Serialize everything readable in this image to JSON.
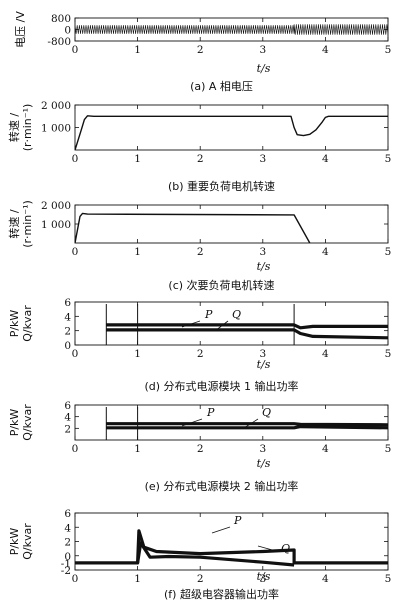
{
  "chart_data": [
    {
      "type": "line",
      "title": "(a) A 相电压",
      "xlabel": "t/s",
      "ylabel": "电压 /V",
      "xlim": [
        0,
        5
      ],
      "ylim": [
        -800,
        800
      ],
      "xticks": [
        "0",
        "1",
        "2",
        "3",
        "4",
        "5"
      ],
      "yticks": [
        "-800",
        "0",
        "800"
      ],
      "series": [
        {
          "x": [
            0,
            3.5,
            3.5,
            5
          ],
          "y_envelope_max": [
            300,
            300,
            360,
            360
          ],
          "y_envelope_min": [
            -300,
            -300,
            -360,
            -360
          ]
        }
      ]
    },
    {
      "type": "line",
      "title": "(b) 重要负荷电机转速",
      "xlabel": "",
      "ylabel": "转速 / (r·min⁻¹)",
      "ylabel_lines": [
        "转速 /",
        "(r·min⁻¹)"
      ],
      "xlim": [
        0,
        5
      ],
      "ylim": [
        0,
        2000
      ],
      "xticks": [
        "0",
        "1",
        "2",
        "3",
        "4",
        "5"
      ],
      "yticks": [
        "1 000",
        "2 000"
      ],
      "series": [
        {
          "x": [
            0,
            0.1,
            0.15,
            0.2,
            0.3,
            3.45,
            3.5,
            3.55,
            3.65,
            3.75,
            3.85,
            3.95,
            4.0,
            4.05,
            5
          ],
          "y": [
            0,
            900,
            1350,
            1520,
            1500,
            1500,
            1000,
            680,
            640,
            700,
            900,
            1250,
            1450,
            1500,
            1500
          ]
        }
      ]
    },
    {
      "type": "line",
      "title": "(c) 次要负荷电机转速",
      "xlabel": "t/s",
      "ylabel": "转速 / (r·min⁻¹)",
      "ylabel_lines": [
        "转速 /",
        "(r·min⁻¹)"
      ],
      "xlim": [
        0,
        5
      ],
      "ylim": [
        0,
        2000
      ],
      "xticks": [
        "0",
        "1",
        "2",
        "3",
        "4",
        "5"
      ],
      "yticks": [
        "1 000",
        "2 000"
      ],
      "series": [
        {
          "x": [
            0,
            0.08,
            0.12,
            0.2,
            3.5,
            3.75
          ],
          "y": [
            0,
            1400,
            1560,
            1520,
            1480,
            0
          ]
        }
      ]
    },
    {
      "type": "line",
      "title": "(d) 分布式电源模块 1 输出功率",
      "xlabel": "t/s",
      "ylabel": "P/kW Q/kvar",
      "ylabel_lines": [
        "P/kW",
        "Q/kvar"
      ],
      "xlim": [
        0,
        5
      ],
      "ylim": [
        0,
        6
      ],
      "xticks": [
        "0",
        "1",
        "2",
        "3",
        "4",
        "5"
      ],
      "yticks": [
        "0",
        "2",
        "4",
        "6"
      ],
      "annotations": [
        "P",
        "Q"
      ],
      "series": [
        {
          "name": "P",
          "x": [
            0.5,
            3.5,
            3.6,
            3.8,
            5
          ],
          "y": [
            2.8,
            2.8,
            2.4,
            2.6,
            2.6
          ]
        },
        {
          "name": "Q",
          "x": [
            0.5,
            3.5,
            3.6,
            3.8,
            5
          ],
          "y": [
            2.1,
            2.1,
            1.6,
            1.2,
            1.0
          ]
        }
      ],
      "spikes_x": [
        0.5,
        1.0,
        3.5
      ]
    },
    {
      "type": "line",
      "title": "(e) 分布式电源模块 2 输出功率",
      "xlabel": "t/s",
      "ylabel": "P/kW Q/kvar",
      "ylabel_lines": [
        "P/kW",
        "Q/kvar"
      ],
      "xlim": [
        0,
        5
      ],
      "ylim": [
        0,
        6
      ],
      "xticks": [
        "0",
        "1",
        "2",
        "3",
        "4",
        "5"
      ],
      "yticks": [
        "2",
        "4",
        "6"
      ],
      "annotations": [
        "P",
        "Q"
      ],
      "series": [
        {
          "name": "P",
          "x": [
            0.5,
            3.5,
            3.6,
            5
          ],
          "y": [
            2.8,
            2.8,
            2.7,
            2.6
          ]
        },
        {
          "name": "Q",
          "x": [
            0.5,
            3.5,
            3.6,
            5
          ],
          "y": [
            2.1,
            2.1,
            2.3,
            2.1
          ]
        }
      ],
      "spikes_x": [
        0.5,
        1.0
      ]
    },
    {
      "type": "line",
      "title": "(f) 超级电容器输出功率",
      "xlabel": "t/s",
      "ylabel": "P/kW Q/kvar",
      "ylabel_lines": [
        "P/kW",
        "Q/kvar"
      ],
      "xlim": [
        0,
        5
      ],
      "ylim": [
        -2,
        6
      ],
      "xticks": [
        "0",
        "1",
        "2",
        "3",
        "4",
        "5"
      ],
      "yticks": [
        "-2",
        "-1",
        "0",
        "2",
        "4",
        "6"
      ],
      "annotations": [
        "P",
        "Q"
      ],
      "series": [
        {
          "name": "P",
          "x": [
            0,
            1.0,
            1.02,
            1.1,
            1.3,
            2.0,
            3.0,
            3.5,
            3.5,
            5
          ],
          "y": [
            -1,
            -1,
            3.5,
            1.2,
            0.6,
            0.3,
            0.6,
            0.8,
            -1,
            -1
          ]
        },
        {
          "name": "Q",
          "x": [
            1.0,
            1.05,
            1.2,
            1.5,
            2.0,
            3.0,
            3.5
          ],
          "y": [
            -1,
            1.8,
            -0.2,
            -0.1,
            -0.2,
            -0.9,
            -1.3
          ]
        }
      ]
    }
  ]
}
